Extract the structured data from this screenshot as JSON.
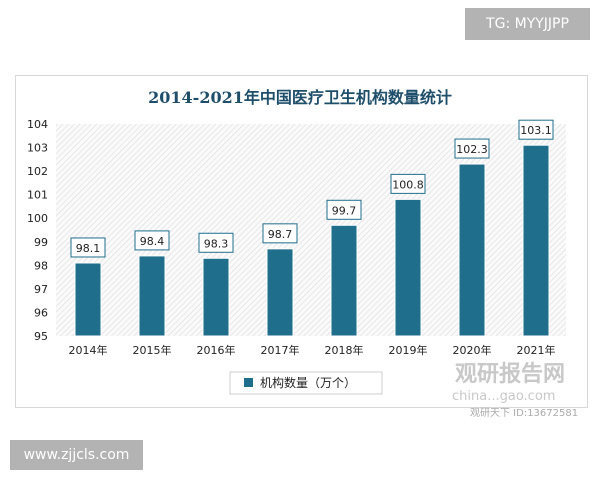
{
  "badges": {
    "tg": "TG: MYYJJPP",
    "site": "www.zjjcls.com"
  },
  "watermark": {
    "name": "观研报告网",
    "url": "china...gao.com",
    "account": "观研天下 ID:13672581"
  },
  "chart_data": {
    "type": "bar",
    "title": "2014-2021年中国医疗卫生机构数量统计",
    "categories": [
      "2014年",
      "2015年",
      "2016年",
      "2017年",
      "2018年",
      "2019年",
      "2020年",
      "2021年"
    ],
    "series": [
      {
        "name": "机构数量（万个）",
        "values": [
          98.1,
          98.4,
          98.3,
          98.7,
          99.7,
          100.8,
          102.3,
          103.1
        ]
      }
    ],
    "ylim": [
      95,
      104
    ],
    "yticks": [
      95,
      96,
      97,
      98,
      99,
      100,
      101,
      102,
      103,
      104
    ],
    "xlabel": "",
    "ylabel": "",
    "legend": "bottom",
    "colors": {
      "bar": "#1f6e8c",
      "title": "#1f4e6b"
    }
  }
}
